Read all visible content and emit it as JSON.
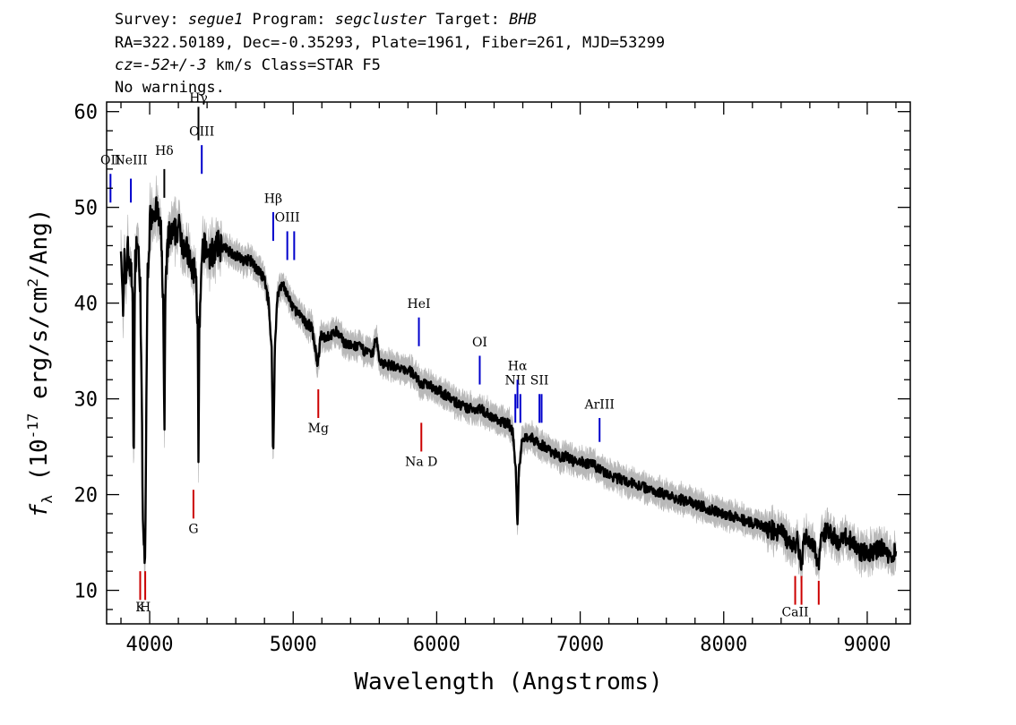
{
  "header": {
    "line1": {
      "survey_label": "Survey: ",
      "survey": "segue1",
      "program_label": " Program: ",
      "program": "segcluster",
      "target_label": " Target: ",
      "target": "BHB"
    },
    "line2": "RA=322.50189, Dec=-0.35293, Plate=1961, Fiber=261, MJD=53299",
    "line3": {
      "cz_label": "cz",
      "cz_value": "=-52+/-3",
      "cz_unit": " km/s",
      "class_text": " Class=STAR F5"
    },
    "line4": "No warnings."
  },
  "chart_data": {
    "type": "line",
    "xlabel": "Wavelength (Angstroms)",
    "ylabel": "f_λ (10^-17 erg/s/cm^2/Ang)",
    "ylabel_parts": {
      "sym": "f",
      "sub": "λ",
      "pre": " (10",
      "exp": "-17",
      "mid": " erg/s/cm",
      "exp2": "2",
      "post": "/Ang)"
    },
    "xlim": [
      3700,
      9300
    ],
    "ylim": [
      6.5,
      61
    ],
    "xticks": [
      4000,
      5000,
      6000,
      7000,
      8000,
      9000
    ],
    "yticks": [
      10,
      20,
      30,
      40,
      50,
      60
    ],
    "series": [
      {
        "color": "#000000",
        "noise_color": "#b8b8b8",
        "points": [
          [
            3800,
            47
          ],
          [
            3815,
            38
          ],
          [
            3825,
            45
          ],
          [
            3835,
            42
          ],
          [
            3845,
            46
          ],
          [
            3860,
            44
          ],
          [
            3880,
            42
          ],
          [
            3889,
            22
          ],
          [
            3898,
            44
          ],
          [
            3912,
            47
          ],
          [
            3935,
            42
          ],
          [
            3955,
            15
          ],
          [
            3968,
            13
          ],
          [
            3985,
            43
          ],
          [
            4005,
            49
          ],
          [
            4030,
            50
          ],
          [
            4060,
            49
          ],
          [
            4080,
            47
          ],
          [
            4095,
            40
          ],
          [
            4102,
            25
          ],
          [
            4110,
            41
          ],
          [
            4130,
            47
          ],
          [
            4160,
            47
          ],
          [
            4200,
            48
          ],
          [
            4240,
            46
          ],
          [
            4270,
            45
          ],
          [
            4300,
            43
          ],
          [
            4320,
            44
          ],
          [
            4335,
            37
          ],
          [
            4340,
            23
          ],
          [
            4346,
            37
          ],
          [
            4370,
            46
          ],
          [
            4420,
            45
          ],
          [
            4480,
            46
          ],
          [
            4550,
            45.5
          ],
          [
            4600,
            45
          ],
          [
            4650,
            44.5
          ],
          [
            4700,
            44.5
          ],
          [
            4750,
            43.5
          ],
          [
            4800,
            42.5
          ],
          [
            4830,
            40
          ],
          [
            4850,
            35
          ],
          [
            4861,
            23.5
          ],
          [
            4872,
            35
          ],
          [
            4890,
            41
          ],
          [
            4930,
            42
          ],
          [
            4980,
            40
          ],
          [
            5030,
            39
          ],
          [
            5080,
            38
          ],
          [
            5130,
            37.5
          ],
          [
            5172,
            33.5
          ],
          [
            5190,
            36.5
          ],
          [
            5250,
            36.5
          ],
          [
            5300,
            37
          ],
          [
            5350,
            36
          ],
          [
            5400,
            35.5
          ],
          [
            5450,
            35.5
          ],
          [
            5500,
            35
          ],
          [
            5550,
            34.5
          ],
          [
            5577,
            36.5
          ],
          [
            5600,
            34
          ],
          [
            5650,
            33.5
          ],
          [
            5700,
            33.5
          ],
          [
            5750,
            33
          ],
          [
            5800,
            33
          ],
          [
            5850,
            32.5
          ],
          [
            5893,
            31.5
          ],
          [
            5920,
            31.5
          ],
          [
            5950,
            31.5
          ],
          [
            6000,
            31
          ],
          [
            6050,
            30.5
          ],
          [
            6100,
            30
          ],
          [
            6150,
            29.5
          ],
          [
            6200,
            29
          ],
          [
            6250,
            29
          ],
          [
            6300,
            29
          ],
          [
            6350,
            28.5
          ],
          [
            6400,
            28
          ],
          [
            6450,
            27.5
          ],
          [
            6500,
            27.5
          ],
          [
            6530,
            26.5
          ],
          [
            6552,
            22.5
          ],
          [
            6563,
            16.5
          ],
          [
            6574,
            23
          ],
          [
            6600,
            26
          ],
          [
            6650,
            26
          ],
          [
            6700,
            25.5
          ],
          [
            6750,
            25
          ],
          [
            6800,
            24.5
          ],
          [
            6850,
            24
          ],
          [
            6900,
            24
          ],
          [
            6950,
            23.5
          ],
          [
            7000,
            23.5
          ],
          [
            7100,
            23
          ],
          [
            7200,
            22
          ],
          [
            7300,
            21.5
          ],
          [
            7400,
            21
          ],
          [
            7500,
            20.5
          ],
          [
            7600,
            20
          ],
          [
            7700,
            19.5
          ],
          [
            7800,
            19
          ],
          [
            7900,
            18.5
          ],
          [
            8000,
            18
          ],
          [
            8100,
            17.5
          ],
          [
            8200,
            17
          ],
          [
            8300,
            16.5
          ],
          [
            8400,
            16
          ],
          [
            8498,
            14.5
          ],
          [
            8510,
            15.5
          ],
          [
            8542,
            12.5
          ],
          [
            8560,
            15.5
          ],
          [
            8600,
            15.5
          ],
          [
            8662,
            13
          ],
          [
            8680,
            16
          ],
          [
            8750,
            16
          ],
          [
            8800,
            15
          ],
          [
            8850,
            15.5
          ],
          [
            8900,
            15
          ],
          [
            8950,
            14
          ],
          [
            9000,
            14
          ],
          [
            9050,
            14
          ],
          [
            9100,
            14.5
          ],
          [
            9150,
            13.5
          ],
          [
            9200,
            14
          ]
        ]
      }
    ],
    "emission_lines": [
      {
        "label": "OII",
        "x": 3727,
        "y0": 50.5,
        "y1": 53.5,
        "label_y": 54.5,
        "color": "#0000cc"
      },
      {
        "label": "NeIII",
        "x": 3869,
        "y0": 50.5,
        "y1": 53.0,
        "label_y": 54.5,
        "color": "#0000cc"
      },
      {
        "label": "OIII",
        "x": 4363,
        "y0": 53.5,
        "y1": 56.5,
        "label_y": 57.5,
        "color": "#0000cc"
      },
      {
        "label": "OIII",
        "x": 4959,
        "y0": 44.5,
        "y1": 47.5,
        "label_y": 48.5,
        "color": "#0000cc"
      },
      {
        "label": "",
        "x": 5007,
        "y0": 44.5,
        "y1": 47.5,
        "label_y": 48.5,
        "color": "#0000cc"
      },
      {
        "label": "HeI",
        "x": 5876,
        "y0": 35.5,
        "y1": 38.5,
        "label_y": 39.5,
        "color": "#0000cc"
      },
      {
        "label": "OI",
        "x": 6300,
        "y0": 31.5,
        "y1": 34.5,
        "label_y": 35.5,
        "color": "#0000cc"
      },
      {
        "label": "NII",
        "x": 6548,
        "y0": 27.5,
        "y1": 30.5,
        "label_y": 31.5,
        "color": "#0000cc"
      },
      {
        "label": "",
        "x": 6583,
        "y0": 27.5,
        "y1": 30.5,
        "label_y": 31.5,
        "color": "#0000cc"
      },
      {
        "label": "SII",
        "x": 6716,
        "y0": 27.5,
        "y1": 30.5,
        "label_y": 31.5,
        "color": "#0000cc"
      },
      {
        "label": "",
        "x": 6731,
        "y0": 27.5,
        "y1": 30.5,
        "label_y": 31.5,
        "color": "#0000cc"
      },
      {
        "label": "ArIII",
        "x": 7135,
        "y0": 25.5,
        "y1": 28.0,
        "label_y": 29.0,
        "color": "#0000cc"
      }
    ],
    "balmer_lines": [
      {
        "label": "Hδ",
        "x": 4102,
        "y0": 51.0,
        "y1": 54.0,
        "label_y": 55.5,
        "color": "#000000"
      },
      {
        "label": "Hγ",
        "x": 4340,
        "y0": 57.0,
        "y1": 60.5,
        "label_y": 61.0,
        "color": "#000000"
      },
      {
        "label": "Hβ",
        "x": 4861,
        "y0": 46.5,
        "y1": 49.5,
        "label_y": 50.5,
        "color": "#0000cc"
      },
      {
        "label": "Hα",
        "x": 6563,
        "y0": 29.0,
        "y1": 32.0,
        "label_y": 33.0,
        "color": "#0000cc"
      }
    ],
    "absorption_lines": [
      {
        "label": "K",
        "x": 3934,
        "y0": 9.0,
        "y1": 12.0,
        "label_y": 7.8,
        "color": "#cc0000"
      },
      {
        "label": "H",
        "x": 3969,
        "y0": 9.0,
        "y1": 12.0,
        "label_y": 7.8,
        "color": "#cc0000"
      },
      {
        "label": "G",
        "x": 4305,
        "y0": 17.5,
        "y1": 20.5,
        "label_y": 16.0,
        "color": "#cc0000"
      },
      {
        "label": "Mg",
        "x": 5175,
        "y0": 28.0,
        "y1": 31.0,
        "label_y": 26.5,
        "color": "#cc0000"
      },
      {
        "label": "Na D",
        "x": 5893,
        "y0": 24.5,
        "y1": 27.5,
        "label_y": 23.0,
        "color": "#cc0000"
      },
      {
        "label": "CaII",
        "x": 8498,
        "y0": 8.5,
        "y1": 11.5,
        "label_y": 7.3,
        "color": "#cc0000"
      },
      {
        "label": "",
        "x": 8542,
        "y0": 8.5,
        "y1": 11.5,
        "label_y": 7.3,
        "color": "#cc0000"
      },
      {
        "label": "",
        "x": 8662,
        "y0": 8.5,
        "y1": 11.0,
        "label_y": 7.3,
        "color": "#cc0000"
      }
    ]
  }
}
